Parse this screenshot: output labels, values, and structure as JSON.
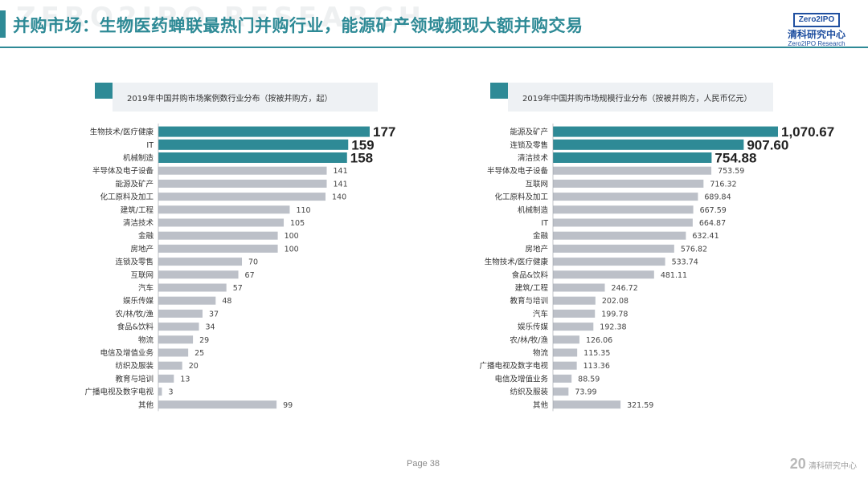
{
  "header": {
    "title": "并购市场：生物医药蝉联最热门并购行业，能源矿产领域频现大额并购交易",
    "watermark": "ZERO2IPO RESEARCH"
  },
  "logo": {
    "mark": "Zero2IPO",
    "cn": "清科研究中心",
    "en": "Zero2IPO Research"
  },
  "footer": {
    "page": "Page 38",
    "logo_mark": "20",
    "logo_text": "清科研究中心"
  },
  "colors": {
    "accent": "#2e8a96",
    "bar_grey": "#bcc0c8",
    "panel_bg": "#eef1f4"
  },
  "chart_data": [
    {
      "type": "bar",
      "orientation": "horizontal",
      "title": "2019年中国并购市场案例数行业分布（按被并购方，起）",
      "categories": [
        "生物技术/医疗健康",
        "IT",
        "机械制造",
        "半导体及电子设备",
        "能源及矿产",
        "化工原料及加工",
        "建筑/工程",
        "清洁技术",
        "金融",
        "房地产",
        "连锁及零售",
        "互联网",
        "汽车",
        "娱乐传媒",
        "农/林/牧/渔",
        "食品&饮料",
        "物流",
        "电信及增值业务",
        "纺织及服装",
        "教育与培训",
        "广播电视及数字电视",
        "其他"
      ],
      "values": [
        177,
        159,
        158,
        141,
        141,
        140,
        110,
        105,
        100,
        100,
        70,
        67,
        57,
        48,
        37,
        34,
        29,
        25,
        20,
        13,
        3,
        99
      ],
      "labels": [
        "177",
        "159",
        "158",
        "141",
        "141",
        "140",
        "110",
        "105",
        "100",
        "100",
        "70",
        "67",
        "57",
        "48",
        "37",
        "34",
        "29",
        "25",
        "20",
        "13",
        "3",
        "99"
      ],
      "highlight_top": 3,
      "xlim": [
        0,
        177
      ]
    },
    {
      "type": "bar",
      "orientation": "horizontal",
      "title": "2019年中国并购市场规模行业分布（按被并购方，人民币亿元）",
      "categories": [
        "能源及矿产",
        "连锁及零售",
        "清洁技术",
        "半导体及电子设备",
        "互联网",
        "化工原料及加工",
        "机械制造",
        "IT",
        "金融",
        "房地产",
        "生物技术/医疗健康",
        "食品&饮料",
        "建筑/工程",
        "教育与培训",
        "汽车",
        "娱乐传媒",
        "农/林/牧/渔",
        "物流",
        "广播电视及数字电视",
        "电信及增值业务",
        "纺织及服装",
        "其他"
      ],
      "values": [
        1070.67,
        907.6,
        754.88,
        753.59,
        716.32,
        689.84,
        667.59,
        664.87,
        632.41,
        576.82,
        533.74,
        481.11,
        246.72,
        202.08,
        199.78,
        192.38,
        126.06,
        115.35,
        113.36,
        88.59,
        73.99,
        321.59
      ],
      "labels": [
        "1,070.67",
        "907.60",
        "754.88",
        "753.59",
        "716.32",
        "689.84",
        "667.59",
        "664.87",
        "632.41",
        "576.82",
        "533.74",
        "481.11",
        "246.72",
        "202.08",
        "199.78",
        "192.38",
        "126.06",
        "115.35",
        "113.36",
        "88.59",
        "73.99",
        "321.59"
      ],
      "highlight_top": 3,
      "xlim": [
        0,
        1070.67
      ]
    }
  ]
}
